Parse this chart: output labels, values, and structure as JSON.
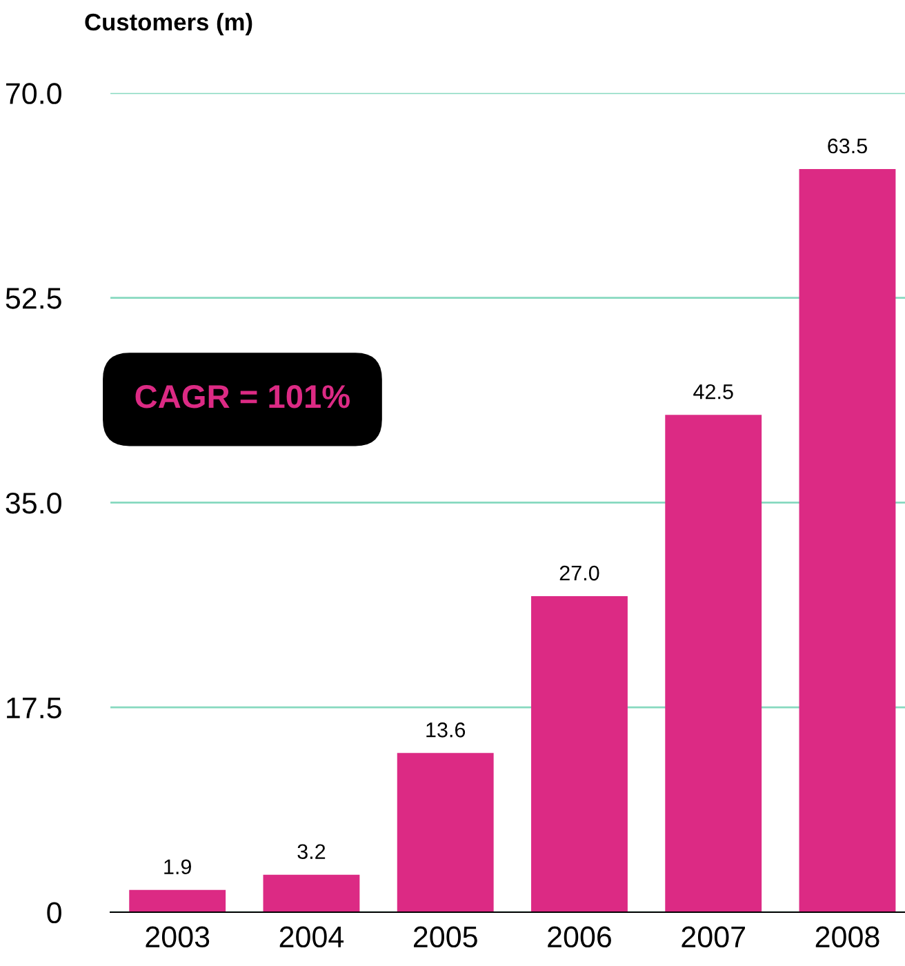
{
  "chart_data": {
    "type": "bar",
    "title": "Customers (m)",
    "categories": [
      "2003",
      "2004",
      "2005",
      "2006",
      "2007",
      "2008"
    ],
    "values": [
      1.9,
      3.2,
      13.6,
      27.0,
      42.5,
      63.5
    ],
    "value_labels": [
      "1.9",
      "3.2",
      "13.6",
      "27.0",
      "42.5",
      "63.5"
    ],
    "color": "#dc2a84",
    "ylim": [
      0,
      70
    ],
    "yticks": [
      {
        "value": 0,
        "label": "0"
      },
      {
        "value": 17.5,
        "label": "17.5"
      },
      {
        "value": 35,
        "label": "35.0"
      },
      {
        "value": 52.5,
        "label": "52.5"
      },
      {
        "value": 70,
        "label": "70.0"
      }
    ],
    "grid": "y",
    "annotations": [
      "CAGR = 101%"
    ]
  }
}
